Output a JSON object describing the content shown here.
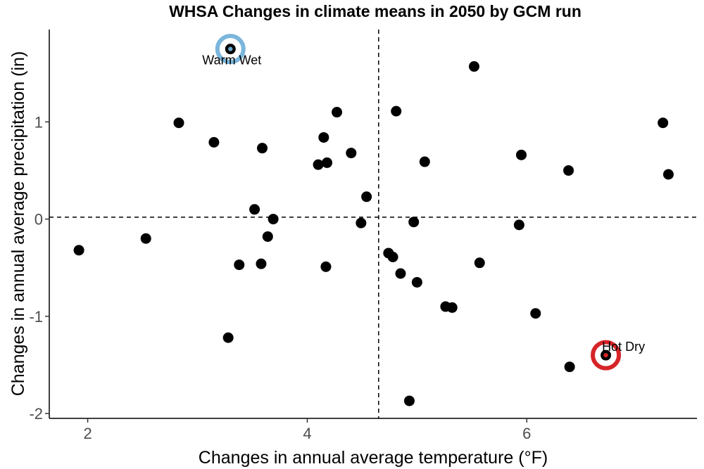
{
  "chart_data": {
    "type": "scatter",
    "title": "WHSA Changes in climate means in 2050 by GCM run",
    "xlabel": "Changes in annual average temperature (°F)",
    "ylabel": "Changes in annual average precipitation (in)",
    "xlim": [
      1.65,
      7.55
    ],
    "ylim": [
      -2.05,
      1.95
    ],
    "xticks": [
      2,
      4,
      6
    ],
    "yticks": [
      -2,
      -1,
      0,
      1
    ],
    "grid": false,
    "reference_lines": {
      "x": 4.65,
      "y": 0.02
    },
    "point_color": "#000000",
    "points": [
      {
        "x": 1.92,
        "y": -0.32
      },
      {
        "x": 2.53,
        "y": -0.2
      },
      {
        "x": 2.83,
        "y": 0.99
      },
      {
        "x": 3.15,
        "y": 0.79
      },
      {
        "x": 3.28,
        "y": -1.22
      },
      {
        "x": 3.3,
        "y": 1.75
      },
      {
        "x": 3.38,
        "y": -0.47
      },
      {
        "x": 3.52,
        "y": 0.1
      },
      {
        "x": 3.58,
        "y": -0.46
      },
      {
        "x": 3.59,
        "y": 0.73
      },
      {
        "x": 3.64,
        "y": -0.18
      },
      {
        "x": 3.69,
        "y": 0.0
      },
      {
        "x": 4.1,
        "y": 0.56
      },
      {
        "x": 4.15,
        "y": 0.84
      },
      {
        "x": 4.17,
        "y": -0.49
      },
      {
        "x": 4.18,
        "y": 0.58
      },
      {
        "x": 4.27,
        "y": 1.1
      },
      {
        "x": 4.4,
        "y": 0.68
      },
      {
        "x": 4.49,
        "y": -0.04
      },
      {
        "x": 4.54,
        "y": 0.23
      },
      {
        "x": 4.74,
        "y": -0.35
      },
      {
        "x": 4.78,
        "y": -0.39
      },
      {
        "x": 4.81,
        "y": 1.11
      },
      {
        "x": 4.85,
        "y": -0.56
      },
      {
        "x": 4.93,
        "y": -1.87
      },
      {
        "x": 4.97,
        "y": -0.03
      },
      {
        "x": 5.0,
        "y": -0.65
      },
      {
        "x": 5.07,
        "y": 0.59
      },
      {
        "x": 5.26,
        "y": -0.9
      },
      {
        "x": 5.32,
        "y": -0.91
      },
      {
        "x": 5.52,
        "y": 1.57
      },
      {
        "x": 5.57,
        "y": -0.45
      },
      {
        "x": 5.93,
        "y": -0.06
      },
      {
        "x": 5.95,
        "y": 0.66
      },
      {
        "x": 6.08,
        "y": -0.97
      },
      {
        "x": 6.38,
        "y": 0.5
      },
      {
        "x": 6.39,
        "y": -1.52
      },
      {
        "x": 6.72,
        "y": -1.4
      },
      {
        "x": 7.24,
        "y": 0.99
      },
      {
        "x": 7.29,
        "y": 0.46
      }
    ],
    "highlights": [
      {
        "label": "Warm Wet",
        "x": 3.3,
        "y": 1.75,
        "color": "#7ab6dc",
        "inner_color": "#6aa9d3"
      },
      {
        "label": "Hot Dry",
        "x": 6.72,
        "y": -1.4,
        "color": "#d62528",
        "inner_color": "#d62528"
      }
    ]
  }
}
